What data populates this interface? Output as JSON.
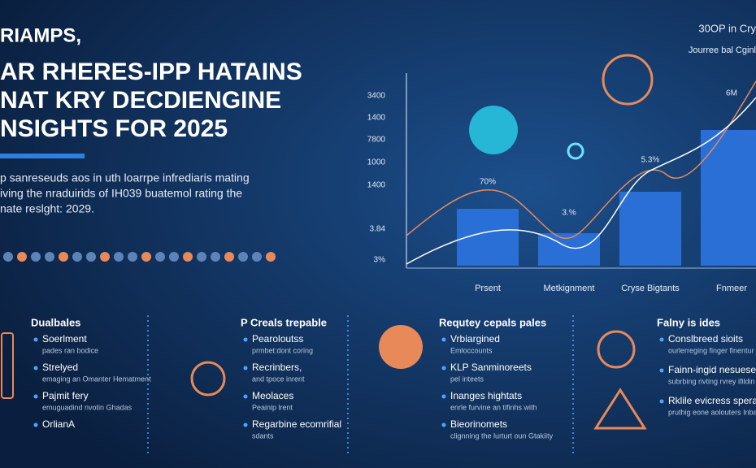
{
  "header": {
    "kicker": "RIAMPS,",
    "title_lines": [
      "AR RHERES-IPP HATAINS",
      "NAT KRY DECDIENGINE",
      "NSIGHTS FOR 2025"
    ],
    "intro_lines": [
      "p sanreseuds aos in uth loarrpe infrediaris mating",
      "iving the nraduirids of IH039 buatemol rating the",
      "nate reslght: 2029."
    ]
  },
  "chart": {
    "top_labels": [
      "30OP in Cry",
      "Jourree bal Cginl"
    ],
    "y_labels": [
      "3400",
      "1400",
      "7800",
      "1000",
      "1400",
      "3.84",
      "3%"
    ],
    "categories": [
      "Prsent",
      "Metkignment",
      "Cryse Bigtants",
      "Fnmeer"
    ],
    "bar_labels": [
      "70%",
      "3.%",
      "5.3%",
      "6M"
    ]
  },
  "columns": [
    {
      "title": "Dualbales",
      "items": [
        {
          "head": "Soerlment",
          "sub": "pades ran bodice"
        },
        {
          "head": "Strelyed",
          "sub": "emaging an Omanter Hematment"
        },
        {
          "head": "Pajmit fery",
          "sub": "emuguadind nvotin Ghadas"
        },
        {
          "head": "OrlianA",
          "sub": ""
        }
      ]
    },
    {
      "title": "P Creals trepable",
      "items": [
        {
          "head": "Pearoloutss",
          "sub": "prmbet:dont coring"
        },
        {
          "head": "Recrinbers,",
          "sub": "and tpoce inrent"
        },
        {
          "head": "Meolaces",
          "sub": "Peainip lrent"
        },
        {
          "head": "Regarbine ecomrifial",
          "sub": "sdants"
        }
      ]
    },
    {
      "title": "Requtey cepals pales",
      "items": [
        {
          "head": "Vrbiargined",
          "sub": "Emloccounts"
        },
        {
          "head": "KLP Sanminoreets",
          "sub": "pel inteets"
        },
        {
          "head": "Inanges hightats",
          "sub": "enrle furvine an tifinhs with"
        },
        {
          "head": "Bieorinomets",
          "sub": "clignning the lurturt oun Gtakiity"
        }
      ]
    },
    {
      "title": "Falny is ides",
      "items": [
        {
          "head": "Conslbreed sioits",
          "sub": "ourlerreging finger finentur"
        },
        {
          "head": "Fainn-ingid nesuesen",
          "sub": "subrbing rivting rvrey ifildin"
        },
        {
          "head": "Rklile evicress speral",
          "sub": "pruthig eone aolouters Inbagi andis dons."
        }
      ]
    }
  ]
}
